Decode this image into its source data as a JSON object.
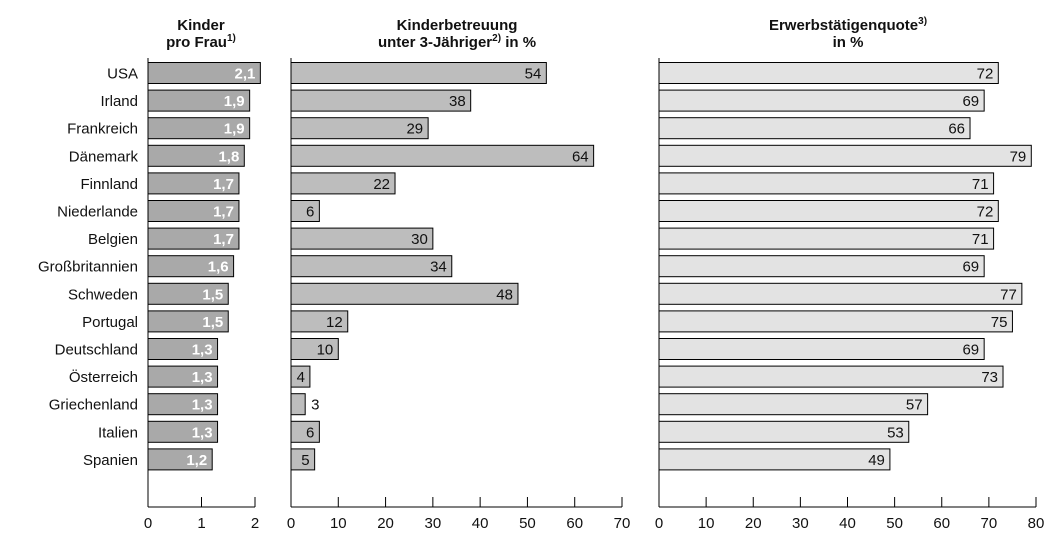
{
  "chart_data": [
    {
      "type": "bar",
      "orientation": "horizontal",
      "title": "Kinder pro Frau",
      "title_lines": [
        "Kinder",
        "pro Frau"
      ],
      "title_superscript": "1)",
      "categories": [
        "USA",
        "Irland",
        "Frankreich",
        "Dänemark",
        "Finnland",
        "Niederlande",
        "Belgien",
        "Großbritannien",
        "Schweden",
        "Portugal",
        "Deutschland",
        "Österreich",
        "Griechenland",
        "Italien",
        "Spanien"
      ],
      "values": [
        2.1,
        1.9,
        1.9,
        1.8,
        1.7,
        1.7,
        1.7,
        1.6,
        1.5,
        1.5,
        1.3,
        1.3,
        1.3,
        1.3,
        1.2
      ],
      "value_labels": [
        "2,1",
        "1,9",
        "1,9",
        "1,8",
        "1,7",
        "1,7",
        "1,7",
        "1,6",
        "1,5",
        "1,5",
        "1,3",
        "1,3",
        "1,3",
        "1,3",
        "1,2"
      ],
      "xlim": [
        0,
        2
      ],
      "ticks": [
        "0",
        "1",
        "2"
      ],
      "bar_color": "#a9a9a9"
    },
    {
      "type": "bar",
      "orientation": "horizontal",
      "title": "Kinderbetreuung unter 3-Jähriger in %",
      "title_lines": [
        "Kinderbetreuung",
        "unter 3-Jähriger"
      ],
      "title_superscript": "2)",
      "title_suffix": " in %",
      "categories": [
        "USA",
        "Irland",
        "Frankreich",
        "Dänemark",
        "Finnland",
        "Niederlande",
        "Belgien",
        "Großbritannien",
        "Schweden",
        "Portugal",
        "Deutschland",
        "Österreich",
        "Griechenland",
        "Italien",
        "Spanien"
      ],
      "values": [
        54,
        38,
        29,
        64,
        22,
        6,
        30,
        34,
        48,
        12,
        10,
        4,
        3,
        6,
        5
      ],
      "value_labels": [
        "54",
        "38",
        "29",
        "64",
        "22",
        "6",
        "30",
        "34",
        "48",
        "12",
        "10",
        "4",
        "3",
        "6",
        "5"
      ],
      "xlim": [
        0,
        70
      ],
      "ticks": [
        "0",
        "10",
        "20",
        "30",
        "40",
        "50",
        "60",
        "70"
      ],
      "bar_color": "#bdbdbd"
    },
    {
      "type": "bar",
      "orientation": "horizontal",
      "title": "Erwerbstätigenquote in %",
      "title_lines": [
        "Erwerbstätigenquote",
        "in %"
      ],
      "title_superscript": "3)",
      "categories": [
        "USA",
        "Irland",
        "Frankreich",
        "Dänemark",
        "Finnland",
        "Niederlande",
        "Belgien",
        "Großbritannien",
        "Schweden",
        "Portugal",
        "Deutschland",
        "Österreich",
        "Griechenland",
        "Italien",
        "Spanien"
      ],
      "values": [
        72,
        69,
        66,
        79,
        71,
        72,
        71,
        69,
        77,
        75,
        69,
        73,
        57,
        53,
        49
      ],
      "value_labels": [
        "72",
        "69",
        "66",
        "79",
        "71",
        "72",
        "71",
        "69",
        "77",
        "75",
        "69",
        "73",
        "57",
        "53",
        "49"
      ],
      "xlim": [
        0,
        80
      ],
      "ticks": [
        "0",
        "10",
        "20",
        "30",
        "40",
        "50",
        "60",
        "70",
        "80"
      ],
      "bar_color": "#e3e3e3"
    }
  ]
}
